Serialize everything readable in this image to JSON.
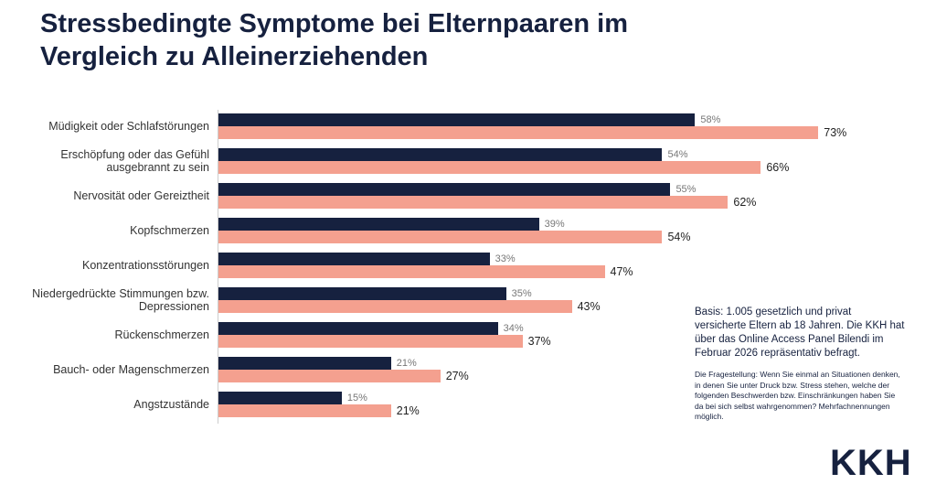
{
  "chart_data": {
    "type": "bar",
    "orientation": "horizontal",
    "title": "Stressbedingte Symptome bei Elternpaaren im Vergleich zu Alleinerziehenden",
    "categories": [
      "Müdigkeit oder Schlafstörungen",
      "Erschöpfung oder das Gefühl ausgebrannt zu sein",
      "Nervosität oder Gereiztheit",
      "Kopfschmerzen",
      "Konzentrationsstörungen",
      "Niedergedrückte Stimmungen bzw. Depressionen",
      "Rückenschmerzen",
      "Bauch- oder Magenschmerzen",
      "Angstzustände"
    ],
    "series": [
      {
        "color": "#16213f",
        "values": [
          58,
          54,
          55,
          39,
          33,
          35,
          34,
          21,
          15
        ],
        "value_labels": [
          "58%",
          "54%",
          "55%",
          "39%",
          "33%",
          "35%",
          "34%",
          "21%",
          "15%"
        ]
      },
      {
        "color": "#f4a08f",
        "values": [
          73,
          66,
          62,
          54,
          47,
          43,
          37,
          27,
          21
        ],
        "value_labels": [
          "73%",
          "66%",
          "62%",
          "54%",
          "47%",
          "43%",
          "37%",
          "27%",
          "21%"
        ]
      }
    ],
    "notes": [
      "Basis: 1.005 gesetzlich und privat versicherte Eltern ab 18 Jahren. Die KKH hat über das Online Access Panel Bilendi im Februar 2026 repräsentativ befragt.",
      "Die Fragestellung: Wenn Sie einmal an Situationen denken, in denen Sie unter Druck bzw. Stress stehen, welche der folgenden Beschwerden bzw. Einschränkungen haben Sie da bei sich selbst wahrgenommen? Mehrfachnennungen möglich."
    ],
    "logo": "KKH"
  }
}
